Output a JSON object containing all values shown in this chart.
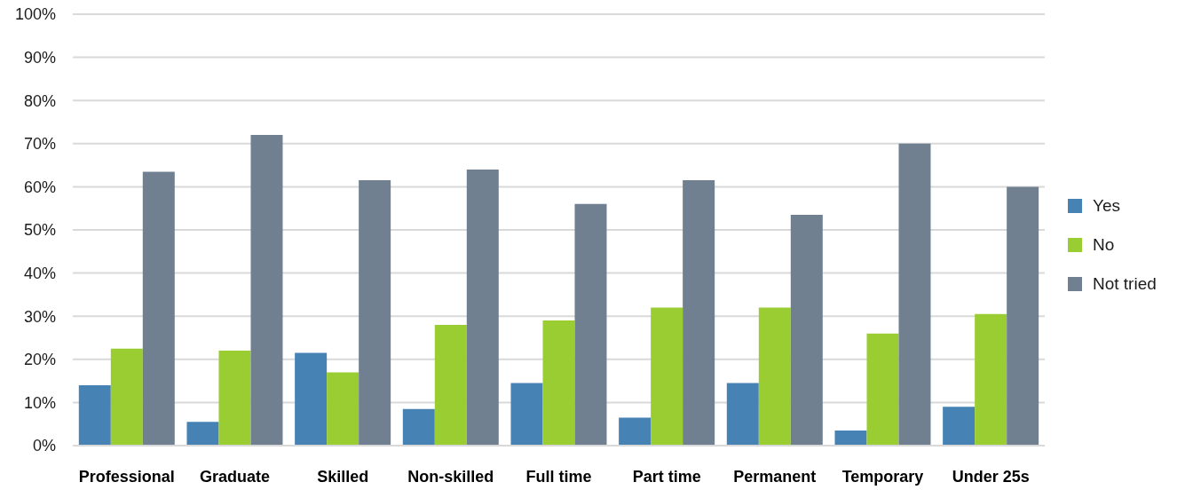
{
  "chart_data": {
    "type": "bar",
    "categories": [
      "Professional",
      "Graduate",
      "Skilled",
      "Non-skilled",
      "Full time",
      "Part time",
      "Permanent",
      "Temporary",
      "Under 25s"
    ],
    "series": [
      {
        "name": "Yes",
        "color": "#4682b4",
        "values": [
          14,
          5.5,
          21.5,
          8.5,
          14.5,
          6.5,
          14.5,
          3.5,
          9
        ]
      },
      {
        "name": "No",
        "color": "#9acd32",
        "values": [
          22.5,
          22,
          17,
          28,
          29,
          32,
          32,
          26,
          30.5
        ]
      },
      {
        "name": "Not tried",
        "color": "#708090",
        "values": [
          63.5,
          72,
          61.5,
          64,
          56,
          61.5,
          53.5,
          70,
          60
        ]
      }
    ],
    "ylim": [
      0,
      100
    ],
    "yticks": [
      {
        "value": 0,
        "label": "0%"
      },
      {
        "value": 10,
        "label": "10%"
      },
      {
        "value": 20,
        "label": "20%"
      },
      {
        "value": 30,
        "label": "30%"
      },
      {
        "value": 40,
        "label": "40%"
      },
      {
        "value": 50,
        "label": "50%"
      },
      {
        "value": 60,
        "label": "60%"
      },
      {
        "value": 70,
        "label": "70%"
      },
      {
        "value": 80,
        "label": "80%"
      },
      {
        "value": 90,
        "label": "90%"
      },
      {
        "value": 100,
        "label": "100%"
      }
    ],
    "grid": "y",
    "legend": "right"
  }
}
